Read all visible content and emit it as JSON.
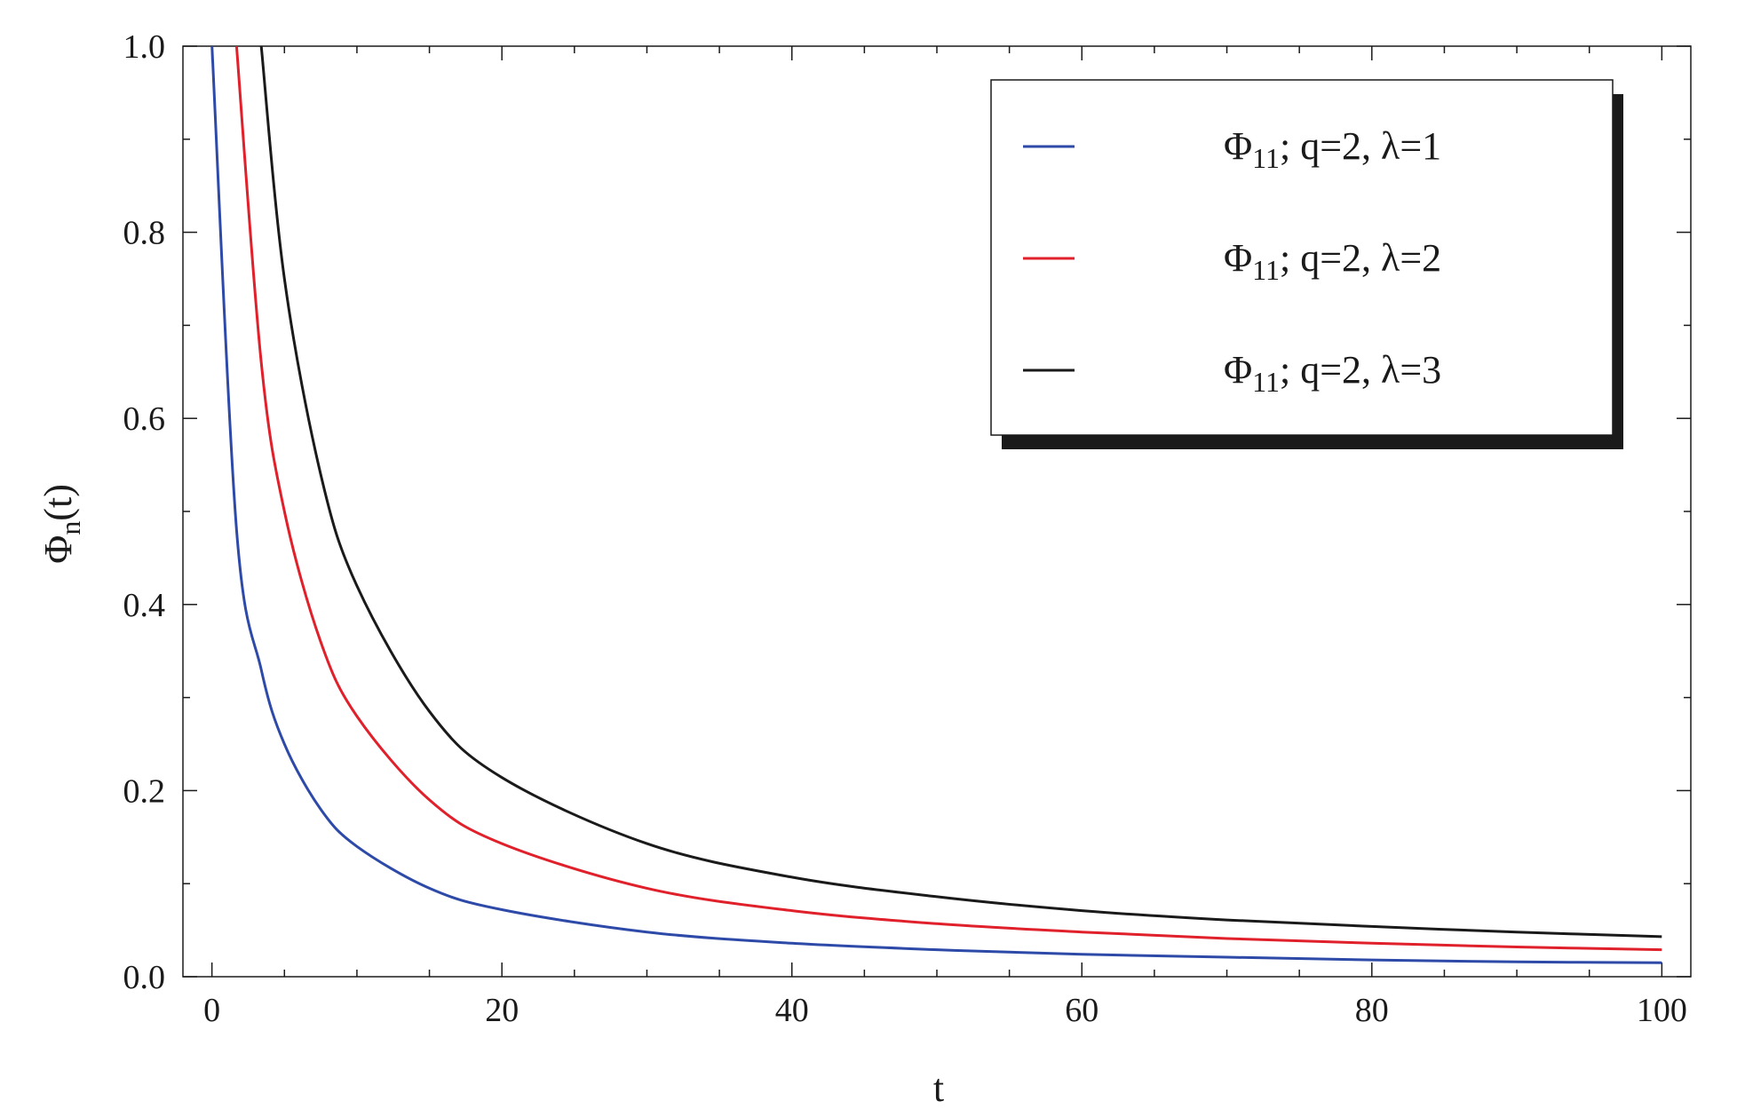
{
  "chart_data": {
    "type": "line",
    "xlabel": "t",
    "ylabel": {
      "base": "Φ",
      "sub": "n",
      "tail": "(t)"
    },
    "xlim": [
      -2,
      102
    ],
    "ylim": [
      0,
      1
    ],
    "x_ticks": [
      0,
      20,
      40,
      60,
      80,
      100
    ],
    "x_tick_labels": [
      "0",
      "20",
      "40",
      "60",
      "80",
      "100"
    ],
    "y_ticks": [
      0,
      0.2,
      0.4,
      0.6,
      0.8,
      1.0
    ],
    "y_tick_labels": [
      "0.0",
      "0.2",
      "0.4",
      "0.6",
      "0.8",
      "1.0"
    ],
    "grid": false,
    "legend_position": "top-right",
    "x": [
      0,
      1.7,
      3.4,
      5,
      7.5,
      10,
      15,
      20,
      30,
      40,
      50,
      60,
      70,
      80,
      90,
      100
    ],
    "series": [
      {
        "legend": {
          "symbol": "Φ",
          "sub": "11",
          "rest": "; q=2, λ=1"
        },
        "color": "#2e4aa8",
        "values": [
          1.0,
          0.48,
          0.33,
          0.25,
          0.18,
          0.14,
          0.095,
          0.072,
          0.048,
          0.036,
          0.029,
          0.024,
          0.021,
          0.018,
          0.016,
          0.015
        ]
      },
      {
        "legend": {
          "symbol": "Φ",
          "sub": "11",
          "rest": "; q=2, λ=2"
        },
        "color": "#e0202a",
        "values": [
          null,
          1.0,
          0.66,
          0.5,
          0.36,
          0.28,
          0.19,
          0.143,
          0.095,
          0.071,
          0.057,
          0.048,
          0.041,
          0.036,
          0.032,
          0.029
        ]
      },
      {
        "legend": {
          "symbol": "Φ",
          "sub": "11",
          "rest": "; q=2, λ=3"
        },
        "color": "#1a1a1a",
        "values": [
          null,
          null,
          1.0,
          0.75,
          0.54,
          0.42,
          0.285,
          0.214,
          0.143,
          0.107,
          0.086,
          0.071,
          0.061,
          0.054,
          0.048,
          0.043
        ]
      }
    ]
  }
}
